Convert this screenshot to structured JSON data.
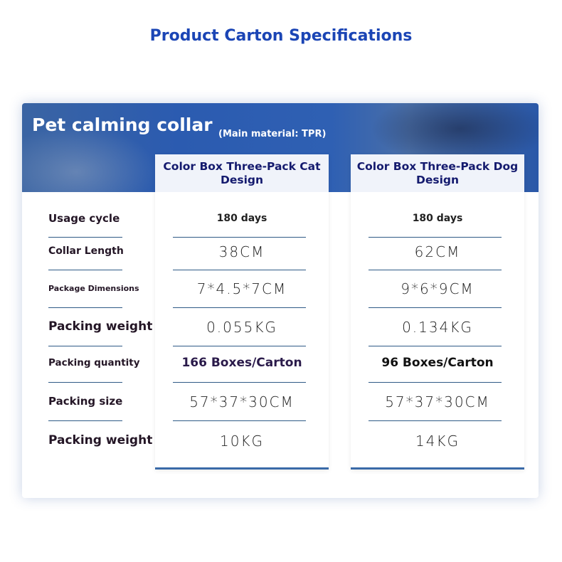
{
  "title": "Product Carton Specifications",
  "banner": {
    "product": "Pet calming collar",
    "material": "(Main material: TPR)"
  },
  "columns": [
    {
      "header": "Color Box Three-Pack Cat Design",
      "values": [
        "180 days",
        "38CM",
        "7*4.5*7CM",
        "0.055KG",
        "166 Boxes/Carton",
        "57*37*30CM",
        "10KG"
      ]
    },
    {
      "header": "Color Box Three-Pack Dog Design",
      "values": [
        "180 days",
        "62CM",
        "9*6*9CM",
        "0.134KG",
        "96 Boxes/Carton",
        "57*37*30CM",
        "14KG"
      ]
    }
  ],
  "rows": [
    "Usage cycle",
    "Collar Length",
    "Package Dimensions",
    "Packing weight",
    "Packing quantity",
    "Packing size",
    "Packing weight"
  ],
  "colors": {
    "title": "#1b45b5",
    "banner": "#2b5bb0",
    "header_text": "#141a6e",
    "divider": "#2f5a86"
  }
}
